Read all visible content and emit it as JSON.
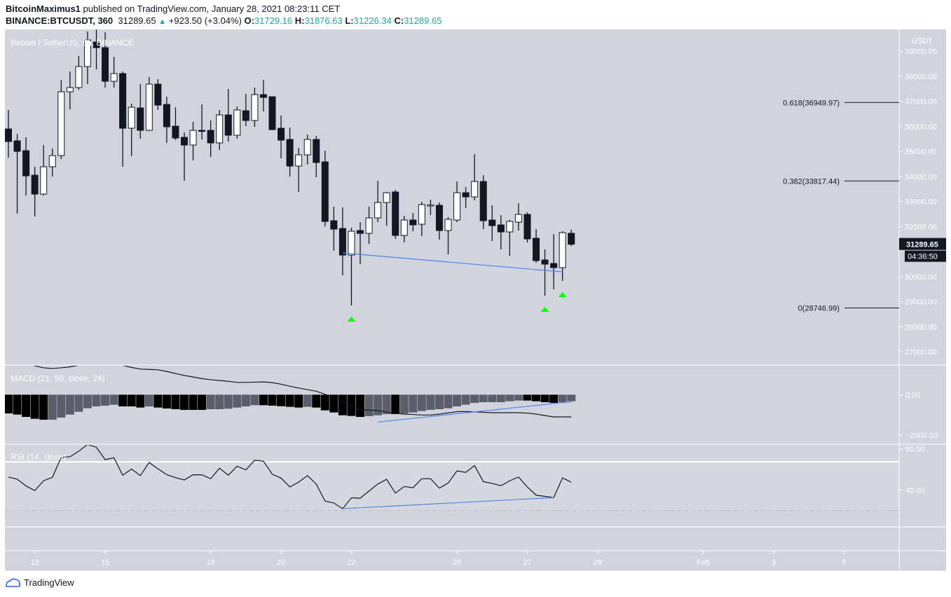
{
  "header": {
    "author": "BitcoinMaximus1",
    "published": "published on TradingView.com, January 28, 2021 08:23:11 CET",
    "symbol": "BINANCE:BTCUSDT, 360",
    "last": "31289.65",
    "change": "+923.50 (+3.04%)",
    "o_label": "O:",
    "o": "31729.16",
    "h_label": "H:",
    "h": "31876.63",
    "l_label": "L:",
    "l": "31226.34",
    "c_label": "C:",
    "c": "31289.65"
  },
  "footer": {
    "brand": "TradingView"
  },
  "colors": {
    "background": "#d1d4dc",
    "up_candle": "#ffffff",
    "down_candle": "#131722",
    "accent": "#26a69a",
    "trendline": "#4a86e8",
    "marker": "#00ff00",
    "macd_hist_falling": "#000000",
    "macd_hist_rising": "#5a5d6a"
  },
  "chart_data": [
    {
      "type": "candlestick",
      "title": "Bitcoin / TetherUS, 6h, BINANCE",
      "interval": "360",
      "y_unit": "USDT",
      "ylim": [
        26500,
        40200
      ],
      "y_ticks": [
        "39000.00",
        "38000.00",
        "37000.00",
        "36000.00",
        "35000.00",
        "34000.00",
        "33000.00",
        "32000.00",
        "30000.00",
        "29000.00",
        "28000.00",
        "27000.00"
      ],
      "x_ticks": [
        "13",
        "15",
        "18",
        "20",
        "22",
        "25",
        "27",
        "29",
        "Feb",
        "3",
        "5"
      ],
      "last_price_label": "31289.65",
      "countdown_label": "04:36:50",
      "ohlc": [
        [
          35895,
          36650,
          34748,
          35392
        ],
        [
          35420,
          35699,
          32511,
          35000
        ],
        [
          35028,
          35560,
          33238,
          34021
        ],
        [
          34049,
          34385,
          32399,
          33294
        ],
        [
          33294,
          35252,
          33238,
          34385
        ],
        [
          34385,
          35112,
          33993,
          34832
        ],
        [
          34832,
          37853,
          34692,
          37378
        ],
        [
          37378,
          38189,
          36678,
          37546
        ],
        [
          37546,
          38804,
          37462,
          38385
        ],
        [
          38385,
          39783,
          37685,
          39448
        ],
        [
          39364,
          39923,
          38273,
          39140
        ],
        [
          39140,
          39755,
          37546,
          37797
        ],
        [
          37797,
          38776,
          37546,
          38105
        ],
        [
          38105,
          38189,
          34385,
          35923
        ],
        [
          35923,
          36902,
          34804,
          36762
        ],
        [
          36734,
          37685,
          35504,
          35839
        ],
        [
          35839,
          37965,
          35811,
          37685
        ],
        [
          37685,
          37881,
          36650,
          36846
        ],
        [
          36874,
          37182,
          35336,
          35979
        ],
        [
          36007,
          36762,
          35448,
          35532
        ],
        [
          35560,
          35755,
          33825,
          35252
        ],
        [
          35252,
          36175,
          34637,
          35839
        ],
        [
          35839,
          36874,
          35476,
          35811
        ],
        [
          35839,
          36231,
          34776,
          35336
        ],
        [
          35336,
          36650,
          35056,
          36455
        ],
        [
          36455,
          37490,
          35392,
          35643
        ],
        [
          35643,
          36790,
          35504,
          36650
        ],
        [
          36622,
          37294,
          36007,
          36231
        ],
        [
          36231,
          37546,
          35979,
          37266
        ],
        [
          37266,
          37853,
          36595,
          37154
        ],
        [
          37182,
          37182,
          35839,
          35867
        ],
        [
          35923,
          36427,
          34720,
          35448
        ],
        [
          35476,
          35951,
          33993,
          34413
        ],
        [
          34413,
          35140,
          33378,
          34860
        ],
        [
          34860,
          35671,
          34469,
          35476
        ],
        [
          35476,
          35615,
          33965,
          34553
        ],
        [
          34581,
          35028,
          32007,
          32203
        ],
        [
          32231,
          32790,
          31028,
          31895
        ],
        [
          31923,
          32762,
          30050,
          30860
        ],
        [
          30860,
          31951,
          28847,
          31811
        ],
        [
          31839,
          32175,
          30497,
          31727
        ],
        [
          31727,
          32790,
          31308,
          32343
        ],
        [
          32343,
          33825,
          32175,
          32958
        ],
        [
          32958,
          33378,
          32035,
          33350
        ],
        [
          33378,
          33462,
          31504,
          31643
        ],
        [
          31643,
          32427,
          31364,
          32259
        ],
        [
          32259,
          32539,
          31811,
          32063
        ],
        [
          32091,
          32986,
          31615,
          32874
        ],
        [
          32846,
          33070,
          32455,
          32860
        ],
        [
          32846,
          32958,
          31476,
          31839
        ],
        [
          31839,
          32371,
          30888,
          32287
        ],
        [
          32259,
          33797,
          32175,
          33350
        ],
        [
          33350,
          33573,
          32734,
          33182
        ],
        [
          33182,
          34888,
          33042,
          33797
        ],
        [
          33797,
          34049,
          31895,
          32231
        ],
        [
          32259,
          32846,
          31420,
          32035
        ],
        [
          32063,
          32455,
          31084,
          31783
        ],
        [
          31783,
          32259,
          30832,
          32203
        ],
        [
          32175,
          32930,
          31839,
          32483
        ],
        [
          32483,
          32567,
          31364,
          31504
        ],
        [
          31532,
          31895,
          30553,
          30637
        ],
        [
          30665,
          31084,
          29238,
          30497
        ],
        [
          30525,
          31693,
          29490,
          30357
        ],
        [
          30357,
          31811,
          29826,
          31755
        ],
        [
          31729.16,
          31876.63,
          31226.34,
          31289.65
        ]
      ],
      "fib_levels": [
        {
          "label": "0.618(36949.97)",
          "value": 36949.97
        },
        {
          "label": "0.382(33817.44)",
          "value": 33817.44
        },
        {
          "label": "0(28746.99)",
          "value": 28746.99
        }
      ],
      "trendline": {
        "from": {
          "candle": 38,
          "value": 30944
        },
        "to": {
          "candle": 63,
          "value": 30189
        }
      },
      "markers": [
        {
          "candle": 39,
          "shape": "triangle-up"
        },
        {
          "candle": 61,
          "shape": "triangle-up"
        },
        {
          "candle": 63,
          "shape": "triangle-up"
        }
      ]
    },
    {
      "type": "bar",
      "title": "MACD (21, 50, close, 24)",
      "ylim": [
        -2000,
        1500
      ],
      "y_ticks": [
        "0.00",
        "−2000.00"
      ],
      "histogram": [
        -925,
        -982,
        -1098,
        -1190,
        -1236,
        -1236,
        -1132,
        -982,
        -843,
        -670,
        -578,
        -543,
        -497,
        -578,
        -578,
        -635,
        -578,
        -635,
        -682,
        -716,
        -751,
        -751,
        -751,
        -716,
        -716,
        -693,
        -635,
        -578,
        -520,
        -520,
        -543,
        -570,
        -600,
        -635,
        -600,
        -635,
        -774,
        -878,
        -1017,
        -1051,
        -1098,
        -1063,
        -1017,
        -959,
        -959,
        -925,
        -878,
        -809,
        -751,
        -716,
        -670,
        -578,
        -497,
        -404,
        -370,
        -370,
        -370,
        -324,
        -289,
        -289,
        -324,
        -370,
        -404,
        -370,
        -324
      ],
      "histogram_falling": [
        1,
        1,
        1,
        1,
        1,
        0,
        0,
        0,
        0,
        0,
        0,
        0,
        0,
        1,
        1,
        1,
        0,
        1,
        1,
        1,
        1,
        1,
        1,
        0,
        0,
        0,
        0,
        0,
        0,
        1,
        1,
        1,
        1,
        1,
        0,
        1,
        1,
        1,
        1,
        1,
        1,
        0,
        0,
        0,
        1,
        0,
        0,
        0,
        0,
        0,
        0,
        0,
        0,
        0,
        0,
        0,
        0,
        0,
        0,
        1,
        1,
        1,
        1,
        0,
        0
      ],
      "macd_line": [
        1700,
        1650,
        1550,
        1431,
        1330,
        1300,
        1330,
        1380,
        1450,
        1550,
        1650,
        1650,
        1550,
        1450,
        1350,
        1269,
        1250,
        1234,
        1150,
        1050,
        950,
        877,
        800,
        740,
        704,
        660,
        610,
        610,
        620,
        635,
        600,
        520,
        420,
        330,
        250,
        173,
        21,
        -173,
        -350,
        -578,
        -728,
        -760,
        -786,
        -850,
        -924,
        -959,
        -980,
        -1005,
        -1005,
        -960,
        -900,
        -840,
        -832,
        -850,
        -870,
        -890,
        -890,
        -890,
        -890,
        -910,
        -960,
        -1030,
        -1098,
        -1098,
        -1098
      ],
      "trendline": {
        "from": {
          "candle": 42,
          "value": -1352
        },
        "to": {
          "candle": 64,
          "value": -347
        }
      }
    },
    {
      "type": "line",
      "title": "RSI (14, close)",
      "y_ticks": [
        "60.00",
        "40.00"
      ],
      "levels": {
        "upper": 53.7,
        "lower": 30
      },
      "values": [
        46.3,
        45.3,
        42.0,
        39.7,
        44.5,
        46.2,
        55.9,
        56.2,
        58.9,
        62.2,
        60.8,
        54.8,
        55.7,
        47.2,
        50.2,
        47.0,
        53.4,
        50.3,
        47.5,
        46.0,
        44.9,
        47.4,
        47.4,
        45.5,
        50.6,
        47.2,
        51.6,
        49.8,
        54.5,
        54.0,
        47.7,
        45.8,
        41.5,
        43.8,
        47.0,
        42.9,
        34.6,
        33.7,
        30.9,
        36.2,
        36.0,
        39.5,
        42.9,
        45.2,
        38.5,
        41.7,
        41.1,
        45.5,
        45.5,
        40.9,
        43.4,
        49.3,
        48.6,
        51.9,
        44.1,
        43.2,
        42.1,
        44.5,
        46.3,
        41.5,
        37.5,
        36.9,
        36.3,
        45.9,
        43.8
      ],
      "trendline": {
        "from": {
          "candle": 38,
          "value": 30.9
        },
        "to": {
          "candle": 62,
          "value": 36.3
        }
      }
    }
  ]
}
